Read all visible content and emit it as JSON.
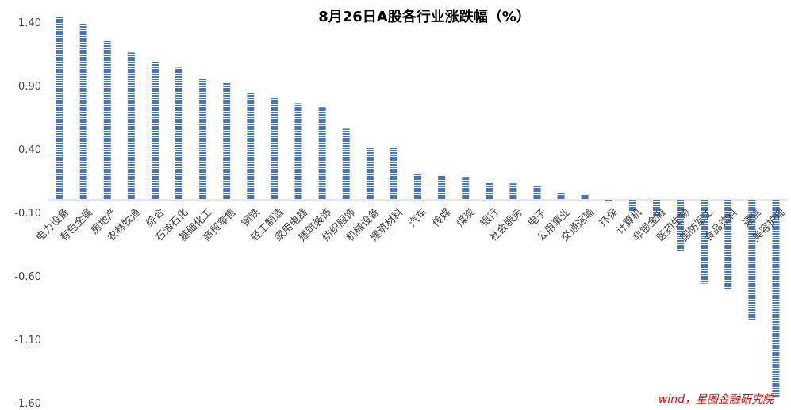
{
  "chart_data": {
    "type": "bar",
    "title": "8月26日A股各行业涨跌幅（%）",
    "xlabel": "",
    "ylabel": "",
    "ylim": [
      -1.6,
      1.4
    ],
    "yticks": [
      "1.40",
      "0.90",
      "0.40",
      "-0.10",
      "-0.60",
      "-1.10",
      "-1.60"
    ],
    "grid": false,
    "legend": "none",
    "bar_color": "#4472C4",
    "categories": [
      "电力设备",
      "有色金属",
      "房地产",
      "农林牧渔",
      "综合",
      "石油石化",
      "基础化工",
      "商贸零售",
      "钢铁",
      "轻工制造",
      "家用电器",
      "建筑装饰",
      "纺织服饰",
      "机械设备",
      "建筑材料",
      "汽车",
      "传媒",
      "煤炭",
      "银行",
      "社会服务",
      "电子",
      "公用事业",
      "交通运输",
      "环保",
      "计算机",
      "非银金融",
      "医药生物",
      "国防军工",
      "食品饮料",
      "通信",
      "美容护理"
    ],
    "values": [
      1.44,
      1.39,
      1.25,
      1.16,
      1.09,
      1.04,
      0.95,
      0.92,
      0.85,
      0.81,
      0.76,
      0.73,
      0.56,
      0.41,
      0.41,
      0.21,
      0.19,
      0.18,
      0.14,
      0.13,
      0.11,
      0.06,
      0.05,
      -0.02,
      -0.09,
      -0.13,
      -0.4,
      -0.66,
      -0.71,
      -0.95,
      -1.55
    ]
  },
  "source_note": "wind，星图金融研究院"
}
